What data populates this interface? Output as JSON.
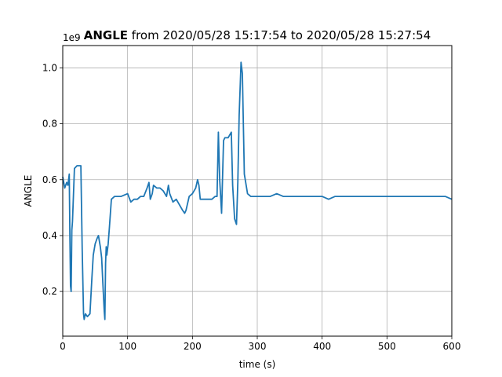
{
  "chart_data": {
    "type": "line",
    "title_bold": "ANGLE",
    "title_rest": " from 2020/05/28 15:17:54 to 2020/05/28 15:27:54",
    "xlabel": "time (s)",
    "ylabel": "ANGLE",
    "y_offset_label": "1e9",
    "xlim": [
      0,
      600
    ],
    "ylim": [
      0.04,
      1.08
    ],
    "x_ticks": [
      0,
      100,
      200,
      300,
      400,
      500,
      600
    ],
    "y_ticks": [
      0.2,
      0.4,
      0.6,
      0.8,
      1.0
    ],
    "x_tick_labels": [
      "0",
      "100",
      "200",
      "300",
      "400",
      "500",
      "600"
    ],
    "y_tick_labels": [
      "0.2",
      "0.4",
      "0.6",
      "0.8",
      "1.0"
    ],
    "grid": true,
    "series": [
      {
        "color": "#1f77b4",
        "x": [
          0,
          3,
          6,
          8,
          10,
          11,
          12,
          13,
          14,
          15,
          18,
          22,
          28,
          30,
          32,
          33,
          35,
          38,
          42,
          45,
          47,
          50,
          53,
          55,
          58,
          60,
          62,
          64,
          65,
          66,
          67,
          68,
          70,
          72,
          75,
          80,
          90,
          100,
          105,
          110,
          115,
          120,
          125,
          130,
          133,
          135,
          138,
          140,
          145,
          150,
          155,
          160,
          163,
          165,
          170,
          175,
          180,
          185,
          188,
          190,
          195,
          200,
          205,
          208,
          210,
          212,
          215,
          220,
          225,
          230,
          235,
          238,
          240,
          242,
          245,
          248,
          250,
          255,
          260,
          262,
          265,
          268,
          270,
          272,
          275,
          277,
          280,
          285,
          290,
          295,
          300,
          310,
          320,
          330,
          340,
          350,
          360,
          370,
          380,
          390,
          400,
          410,
          420,
          430,
          440,
          450,
          460,
          470,
          480,
          490,
          500,
          510,
          520,
          530,
          540,
          550,
          560,
          570,
          580,
          590,
          600
        ],
        "y": [
          0.61,
          0.57,
          0.59,
          0.58,
          0.62,
          0.4,
          0.22,
          0.2,
          0.42,
          0.45,
          0.64,
          0.65,
          0.65,
          0.35,
          0.12,
          0.1,
          0.12,
          0.11,
          0.12,
          0.25,
          0.33,
          0.37,
          0.39,
          0.4,
          0.36,
          0.32,
          0.22,
          0.13,
          0.1,
          0.3,
          0.36,
          0.33,
          0.37,
          0.43,
          0.53,
          0.54,
          0.54,
          0.55,
          0.52,
          0.53,
          0.53,
          0.54,
          0.54,
          0.57,
          0.59,
          0.53,
          0.55,
          0.58,
          0.57,
          0.57,
          0.56,
          0.54,
          0.58,
          0.55,
          0.52,
          0.53,
          0.51,
          0.49,
          0.48,
          0.49,
          0.54,
          0.55,
          0.57,
          0.6,
          0.58,
          0.53,
          0.53,
          0.53,
          0.53,
          0.53,
          0.54,
          0.54,
          0.77,
          0.6,
          0.48,
          0.74,
          0.75,
          0.75,
          0.77,
          0.58,
          0.46,
          0.44,
          0.59,
          0.83,
          1.02,
          0.98,
          0.62,
          0.55,
          0.54,
          0.54,
          0.54,
          0.54,
          0.54,
          0.55,
          0.54,
          0.54,
          0.54,
          0.54,
          0.54,
          0.54,
          0.54,
          0.53,
          0.54,
          0.54,
          0.54,
          0.54,
          0.54,
          0.54,
          0.54,
          0.54,
          0.54,
          0.54,
          0.54,
          0.54,
          0.54,
          0.54,
          0.54,
          0.54,
          0.54,
          0.54,
          0.53
        ]
      }
    ]
  }
}
